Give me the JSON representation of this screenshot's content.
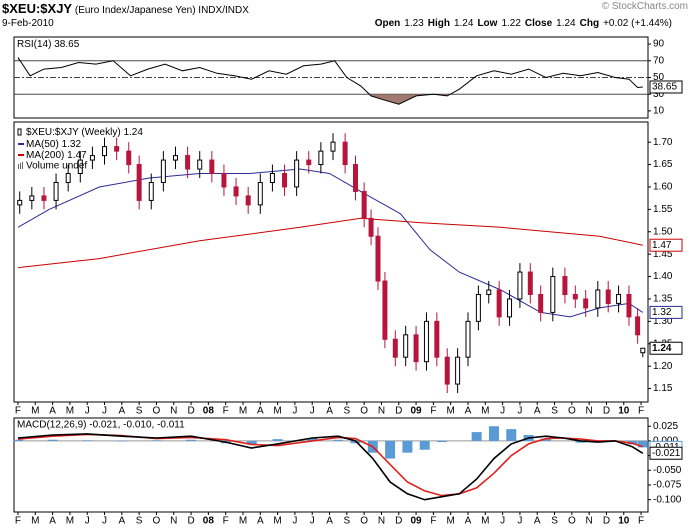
{
  "header": {
    "title": "$XEU:$XJY",
    "subtitle": "(Euro Index/Japanese Yen) INDX/INDX",
    "date": "9-Feb-2010",
    "watermark": "© StockCharts.com",
    "stats": [
      {
        "label": "Open",
        "value": "1.23"
      },
      {
        "label": "High",
        "value": "1.24"
      },
      {
        "label": "Low",
        "value": "1.22"
      },
      {
        "label": "Close",
        "value": "1.24"
      },
      {
        "label": "Chg",
        "value": "+0.02 (+1.44%)"
      }
    ]
  },
  "chart_data": [
    {
      "type": "line",
      "title": "RSI(14)",
      "color": "#000000",
      "shade_color": "#a07a70",
      "xlim": [
        -0.23,
        36.4
      ],
      "ylim": [
        1.5,
        98.5
      ],
      "yticks": [
        90,
        70,
        50,
        30,
        10
      ],
      "levels": [
        70,
        50,
        30
      ],
      "level_styles": [
        "solid",
        "dashdot",
        "solid"
      ],
      "x": [
        0,
        0.7,
        1.5,
        2.5,
        3.5,
        4.5,
        5.5,
        6.5,
        7.5,
        8.5,
        9.5,
        10.5,
        11.5,
        12.5,
        13.5,
        14.5,
        15.5,
        16.5,
        17.5,
        18.3,
        19,
        19.8,
        20.4,
        21,
        22,
        23,
        24,
        24.8,
        25.5,
        26.5,
        27.5,
        28.5,
        29.5,
        30.5,
        31.5,
        32.5,
        33.5,
        34.5,
        35.3,
        35.8,
        36.1
      ],
      "values": [
        74,
        52,
        60,
        62,
        68,
        66,
        70,
        52,
        60,
        66,
        58,
        62,
        55,
        52,
        48,
        58,
        54,
        64,
        66,
        70,
        50,
        40,
        28,
        24,
        18,
        28,
        30,
        28,
        36,
        52,
        58,
        54,
        60,
        50,
        55,
        52,
        56,
        50,
        48,
        38,
        38.65
      ]
    },
    {
      "type": "candlestick",
      "name": "$XEU:$XJY (Weekly)",
      "up_color": "#000000",
      "down_color": "#b8143c",
      "volume_label": "Volume undef",
      "xlim": [
        -0.23,
        36.4
      ],
      "ylim": [
        1.12,
        1.745
      ],
      "yticks": [
        1.15,
        {
          "value": 1.2,
          "label": "1.20"
        },
        1.25,
        {
          "value": 1.3,
          "label": "1.30"
        },
        1.35,
        {
          "value": 1.4,
          "label": "1.40"
        },
        1.45,
        {
          "value": 1.5,
          "label": "1.50"
        },
        1.55,
        {
          "value": 1.6,
          "label": "1.60"
        },
        1.65,
        {
          "value": 1.7,
          "label": "1.70"
        }
      ],
      "xticks": [
        {
          "value": 0,
          "label": "F"
        },
        {
          "value": 1,
          "label": "M"
        },
        {
          "value": 2,
          "label": "A"
        },
        {
          "value": 3,
          "label": "M"
        },
        {
          "value": 4,
          "label": "J"
        },
        {
          "value": 5,
          "label": "J"
        },
        {
          "value": 6,
          "label": "A"
        },
        {
          "value": 7,
          "label": "S"
        },
        {
          "value": 8,
          "label": "O"
        },
        {
          "value": 9,
          "label": "N"
        },
        {
          "value": 10,
          "label": "D"
        },
        {
          "value": 11,
          "label": "08"
        },
        {
          "value": 12,
          "label": "F"
        },
        {
          "value": 13,
          "label": "M"
        },
        {
          "value": 14,
          "label": "A"
        },
        {
          "value": 15,
          "label": "M"
        },
        {
          "value": 16,
          "label": "J"
        },
        {
          "value": 17,
          "label": "J"
        },
        {
          "value": 18,
          "label": "A"
        },
        {
          "value": 19,
          "label": "S"
        },
        {
          "value": 20,
          "label": "O"
        },
        {
          "value": 21,
          "label": "N"
        },
        {
          "value": 22,
          "label": "D"
        },
        {
          "value": 23,
          "label": "09"
        },
        {
          "value": 24,
          "label": "F"
        },
        {
          "value": 25,
          "label": "M"
        },
        {
          "value": 26,
          "label": "A"
        },
        {
          "value": 27,
          "label": "M"
        },
        {
          "value": 28,
          "label": "J"
        },
        {
          "value": 29,
          "label": "J"
        },
        {
          "value": 30,
          "label": "A"
        },
        {
          "value": 31,
          "label": "S"
        },
        {
          "value": 32,
          "label": "O"
        },
        {
          "value": 33,
          "label": "N"
        },
        {
          "value": 34,
          "label": "D"
        },
        {
          "value": 35,
          "label": "10"
        },
        {
          "value": 36,
          "label": "F"
        }
      ],
      "x": [
        0.1,
        0.8,
        1.5,
        2.2,
        2.9,
        3.6,
        4.3,
        5.0,
        5.7,
        6.4,
        7.0,
        7.7,
        8.4,
        9.1,
        9.8,
        10.5,
        11.2,
        11.9,
        12.6,
        13.3,
        14.0,
        14.7,
        15.4,
        16.1,
        16.8,
        17.5,
        18.2,
        18.9,
        19.5,
        20.0,
        20.4,
        20.8,
        21.2,
        21.8,
        22.4,
        23.0,
        23.6,
        24.2,
        24.8,
        25.4,
        26.0,
        26.6,
        27.2,
        27.8,
        28.4,
        29.0,
        29.6,
        30.2,
        30.9,
        31.6,
        32.2,
        32.8,
        33.5,
        34.1,
        34.7,
        35.3,
        35.8,
        36.1
      ],
      "open": [
        1.56,
        1.57,
        1.58,
        1.57,
        1.61,
        1.63,
        1.66,
        1.67,
        1.69,
        1.68,
        1.65,
        1.57,
        1.61,
        1.66,
        1.67,
        1.64,
        1.66,
        1.63,
        1.6,
        1.58,
        1.56,
        1.61,
        1.63,
        1.6,
        1.66,
        1.65,
        1.68,
        1.7,
        1.65,
        1.59,
        1.53,
        1.49,
        1.39,
        1.26,
        1.22,
        1.27,
        1.21,
        1.3,
        1.22,
        1.16,
        1.22,
        1.3,
        1.36,
        1.37,
        1.31,
        1.35,
        1.41,
        1.36,
        1.32,
        1.4,
        1.36,
        1.35,
        1.33,
        1.37,
        1.34,
        1.36,
        1.31,
        1.23
      ],
      "high": [
        1.59,
        1.6,
        1.6,
        1.63,
        1.65,
        1.68,
        1.69,
        1.71,
        1.71,
        1.7,
        1.67,
        1.63,
        1.68,
        1.69,
        1.69,
        1.68,
        1.68,
        1.65,
        1.62,
        1.6,
        1.63,
        1.65,
        1.65,
        1.68,
        1.68,
        1.7,
        1.72,
        1.72,
        1.67,
        1.61,
        1.55,
        1.51,
        1.41,
        1.28,
        1.29,
        1.29,
        1.32,
        1.32,
        1.24,
        1.24,
        1.32,
        1.38,
        1.39,
        1.39,
        1.37,
        1.43,
        1.43,
        1.38,
        1.42,
        1.42,
        1.38,
        1.37,
        1.39,
        1.39,
        1.38,
        1.38,
        1.33,
        1.24
      ],
      "low": [
        1.54,
        1.55,
        1.55,
        1.55,
        1.59,
        1.61,
        1.64,
        1.65,
        1.66,
        1.63,
        1.55,
        1.55,
        1.59,
        1.64,
        1.62,
        1.62,
        1.61,
        1.58,
        1.56,
        1.54,
        1.54,
        1.59,
        1.58,
        1.58,
        1.63,
        1.63,
        1.66,
        1.63,
        1.57,
        1.51,
        1.47,
        1.37,
        1.24,
        1.2,
        1.2,
        1.19,
        1.19,
        1.2,
        1.14,
        1.14,
        1.2,
        1.28,
        1.34,
        1.29,
        1.29,
        1.33,
        1.34,
        1.3,
        1.3,
        1.34,
        1.33,
        1.31,
        1.31,
        1.32,
        1.32,
        1.29,
        1.25,
        1.22
      ],
      "close": [
        1.57,
        1.58,
        1.57,
        1.61,
        1.63,
        1.66,
        1.67,
        1.69,
        1.68,
        1.65,
        1.57,
        1.61,
        1.66,
        1.67,
        1.64,
        1.66,
        1.63,
        1.6,
        1.58,
        1.56,
        1.61,
        1.63,
        1.6,
        1.66,
        1.65,
        1.68,
        1.7,
        1.65,
        1.59,
        1.53,
        1.49,
        1.39,
        1.26,
        1.22,
        1.27,
        1.21,
        1.3,
        1.22,
        1.16,
        1.22,
        1.3,
        1.36,
        1.37,
        1.31,
        1.35,
        1.41,
        1.36,
        1.32,
        1.4,
        1.36,
        1.35,
        1.33,
        1.37,
        1.34,
        1.36,
        1.31,
        1.27,
        1.24
      ],
      "series": [
        {
          "name": "MA(50)",
          "color": "#2b2b9a",
          "x": [
            0,
            1.8,
            4.7,
            7.6,
            10.5,
            13.4,
            16.3,
            18.0,
            19.8,
            22.1,
            23.8,
            25.5,
            27.9,
            30.2,
            31.9,
            33.6,
            35.3,
            36.1
          ],
          "values": [
            1.51,
            1.55,
            1.6,
            1.62,
            1.63,
            1.63,
            1.64,
            1.63,
            1.59,
            1.54,
            1.46,
            1.41,
            1.37,
            1.32,
            1.31,
            1.33,
            1.34,
            1.32
          ]
        },
        {
          "name": "MA(200)",
          "color": "#cc0000",
          "x": [
            0,
            4.7,
            10.5,
            16.3,
            19.8,
            23.3,
            27.9,
            33.6,
            36.1
          ],
          "values": [
            1.42,
            1.44,
            1.48,
            1.51,
            1.53,
            1.52,
            1.51,
            1.49,
            1.47
          ]
        }
      ]
    },
    {
      "type": "macd",
      "title": "MACD(12,26,9) -0.021, -0.010, -0.011",
      "xlim": [
        -0.23,
        36.4
      ],
      "ylim": [
        -0.121,
        0.039
      ],
      "yticks": [
        0.025,
        {
          "value": 0,
          "label": "0.000"
        },
        -0.025,
        {
          "value": -0.05,
          "label": "-0.050"
        },
        -0.075,
        {
          "value": -0.1,
          "label": "-0.100"
        }
      ],
      "xticks": [
        {
          "value": 0,
          "label": "F"
        },
        {
          "value": 1,
          "label": "M"
        },
        {
          "value": 2,
          "label": "A"
        },
        {
          "value": 3,
          "label": "M"
        },
        {
          "value": 4,
          "label": "J"
        },
        {
          "value": 5,
          "label": "J"
        },
        {
          "value": 6,
          "label": "A"
        },
        {
          "value": 7,
          "label": "S"
        },
        {
          "value": 8,
          "label": "O"
        },
        {
          "value": 9,
          "label": "N"
        },
        {
          "value": 10,
          "label": "D"
        },
        {
          "value": 11,
          "label": "08"
        },
        {
          "value": 12,
          "label": "F"
        },
        {
          "value": 13,
          "label": "M"
        },
        {
          "value": 14,
          "label": "A"
        },
        {
          "value": 15,
          "label": "M"
        },
        {
          "value": 16,
          "label": "J"
        },
        {
          "value": 17,
          "label": "J"
        },
        {
          "value": 18,
          "label": "A"
        },
        {
          "value": 19,
          "label": "S"
        },
        {
          "value": 20,
          "label": "O"
        },
        {
          "value": 21,
          "label": "N"
        },
        {
          "value": 22,
          "label": "D"
        },
        {
          "value": 23,
          "label": "09"
        },
        {
          "value": 24,
          "label": "F"
        },
        {
          "value": 25,
          "label": "M"
        },
        {
          "value": 26,
          "label": "A"
        },
        {
          "value": 27,
          "label": "M"
        },
        {
          "value": 28,
          "label": "J"
        },
        {
          "value": 29,
          "label": "J"
        },
        {
          "value": 30,
          "label": "A"
        },
        {
          "value": 31,
          "label": "S"
        },
        {
          "value": 32,
          "label": "O"
        },
        {
          "value": 33,
          "label": "N"
        },
        {
          "value": 34,
          "label": "D"
        },
        {
          "value": 35,
          "label": "10"
        },
        {
          "value": 36,
          "label": "F"
        }
      ],
      "x": [
        0,
        2,
        4,
        6,
        8,
        10,
        12,
        13.5,
        15,
        17,
        18.5,
        19.5,
        20.5,
        21.5,
        22.5,
        23.5,
        24.5,
        25.5,
        26.5,
        27.5,
        28.5,
        29.5,
        30.5,
        31.5,
        32.5,
        33.5,
        34.5,
        35.5,
        36.1
      ],
      "series": [
        {
          "style": "bar",
          "color": "#5b9bd5",
          "values": [
            0.002,
            0.002,
            0.001,
            -0.001,
            0.001,
            0.002,
            -0.004,
            -0.006,
            0.003,
            0.005,
            0.002,
            -0.004,
            -0.02,
            -0.03,
            -0.02,
            -0.015,
            -0.002,
            0.0,
            0.015,
            0.025,
            0.02,
            0.01,
            0.004,
            0.0,
            -0.003,
            -0.002,
            0.0,
            -0.006,
            -0.011
          ]
        },
        {
          "style": "line",
          "color": "#e0201a",
          "values": [
            0.003,
            0.008,
            0.011,
            0.009,
            0.004,
            0.006,
            0.002,
            -0.006,
            -0.008,
            0.0,
            0.006,
            0.004,
            -0.01,
            -0.04,
            -0.07,
            -0.085,
            -0.093,
            -0.09,
            -0.08,
            -0.055,
            -0.025,
            -0.005,
            0.004,
            0.005,
            0.003,
            0.0,
            0.0,
            -0.004,
            -0.01
          ]
        },
        {
          "style": "line",
          "color": "#000000",
          "values": [
            0.005,
            0.01,
            0.012,
            0.008,
            0.005,
            0.008,
            -0.002,
            -0.012,
            -0.005,
            0.005,
            0.008,
            0.0,
            -0.03,
            -0.07,
            -0.09,
            -0.1,
            -0.095,
            -0.09,
            -0.065,
            -0.03,
            -0.005,
            0.005,
            0.008,
            0.005,
            0.0,
            -0.002,
            0.0,
            -0.01,
            -0.021
          ]
        }
      ]
    }
  ]
}
